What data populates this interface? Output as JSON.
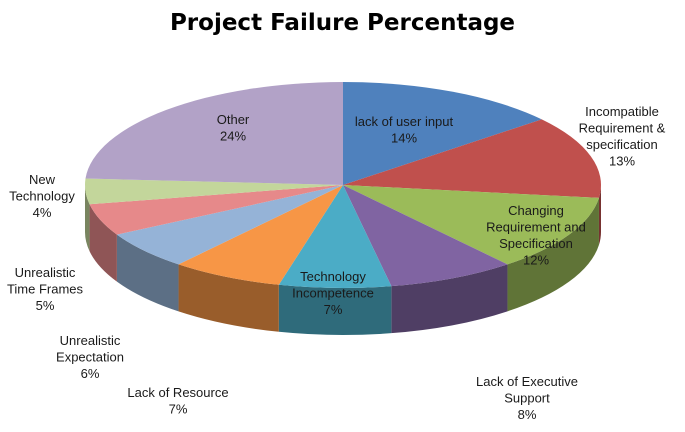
{
  "chart_data": {
    "type": "pie",
    "style": "3d-exploded-none",
    "title": "Project Failure Percentage",
    "slices": [
      {
        "label": "lack of user input",
        "value": 14,
        "percent_label": "14%",
        "color": "#4F81BD"
      },
      {
        "label": "Incompatible Requirement & specification",
        "value": 13,
        "percent_label": "13%",
        "color": "#C0504D"
      },
      {
        "label": "Changing Requirement and Specification",
        "value": 12,
        "percent_label": "12%",
        "color": "#9BBB59"
      },
      {
        "label": "Lack of Executive Support",
        "value": 8,
        "percent_label": "8%",
        "color": "#8064A2"
      },
      {
        "label": "Technology Incompetence",
        "value": 7,
        "percent_label": "7%",
        "color": "#4BACC6"
      },
      {
        "label": "Lack of Resource",
        "value": 7,
        "percent_label": "7%",
        "color": "#F79646"
      },
      {
        "label": "Unrealistic Expectation",
        "value": 6,
        "percent_label": "6%",
        "color": "#95B3D7"
      },
      {
        "label": "Unrealistic Time Frames",
        "value": 5,
        "percent_label": "5%",
        "color": "#E6898A"
      },
      {
        "label": "New Technology",
        "value": 4,
        "percent_label": "4%",
        "color": "#C3D69B"
      },
      {
        "label": "Other",
        "value": 24,
        "percent_label": "24%",
        "color": "#B2A2C7"
      }
    ]
  }
}
